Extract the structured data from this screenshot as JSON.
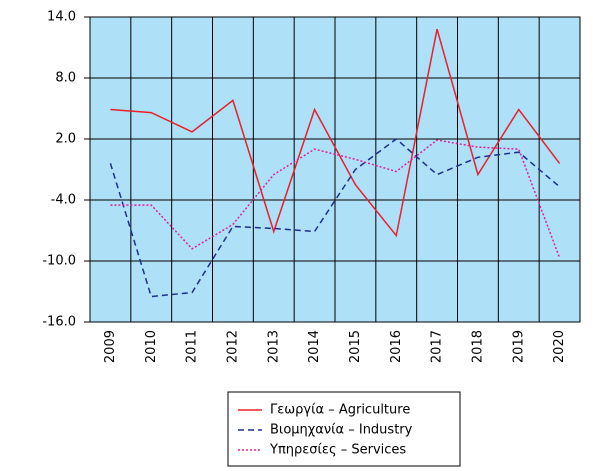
{
  "chart_data": {
    "type": "line",
    "categories": [
      "2009",
      "2010",
      "2011",
      "2012",
      "2013",
      "2014",
      "2015",
      "2016",
      "2017",
      "2018",
      "2019",
      "2020"
    ],
    "series": [
      {
        "name": "Γεωργία – Agriculture",
        "color": "#e8202a",
        "dash": "solid",
        "values": [
          4.9,
          4.6,
          2.7,
          5.8,
          -7.1,
          4.9,
          -2.5,
          -7.5,
          12.8,
          -1.5,
          4.9,
          -0.4
        ]
      },
      {
        "name": "Βιομηχανία – Industry",
        "color": "#1f2f8f",
        "dash": "dashed",
        "values": [
          -0.4,
          -13.5,
          -13.1,
          -6.6,
          -6.8,
          -7.1,
          -1.0,
          2.0,
          -1.5,
          0.2,
          0.7,
          -2.7
        ]
      },
      {
        "name": "Υπηρεσίες – Services",
        "color": "#e0209a",
        "dash": "dotted",
        "values": [
          -4.5,
          -4.5,
          -8.8,
          -6.4,
          -1.5,
          1.0,
          0.0,
          -1.2,
          1.9,
          1.2,
          1.0,
          -9.7
        ]
      }
    ],
    "ylim": [
      -16,
      14
    ],
    "yticks": [
      {
        "value": 14,
        "label": "14.0"
      },
      {
        "value": 8,
        "label": "8.0"
      },
      {
        "value": 2,
        "label": "2.0"
      },
      {
        "value": -4,
        "label": "-4.0"
      },
      {
        "value": -10,
        "label": "-10.0"
      },
      {
        "value": -16,
        "label": "-16.0"
      }
    ],
    "grid": true,
    "legend": "bottom",
    "background": "#aee0f8"
  }
}
